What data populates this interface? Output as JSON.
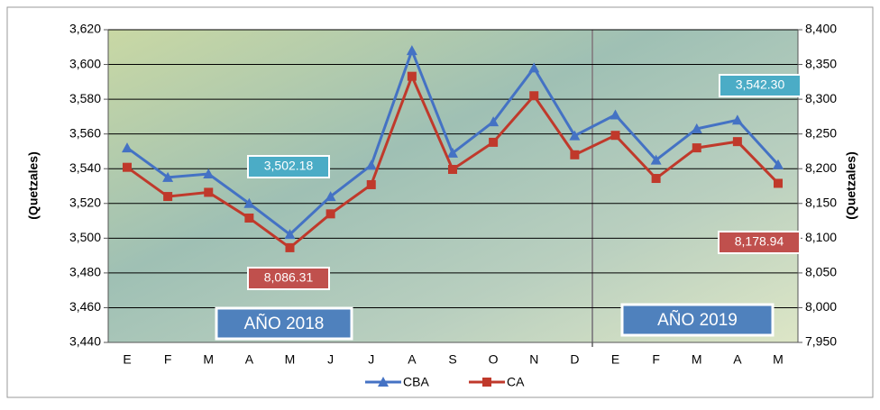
{
  "chart_data": {
    "type": "line",
    "categories": [
      "E",
      "F",
      "M",
      "A",
      "M",
      "J",
      "J",
      "A",
      "S",
      "O",
      "N",
      "D",
      "E",
      "F",
      "M",
      "A",
      "M"
    ],
    "y_label": "(Quetzales)",
    "y2_label": "(Quetzales)",
    "annotations": [
      "AÑO 2018",
      "AÑO 2019"
    ],
    "series": [
      {
        "name": "CBA",
        "color": "#4472c4",
        "marker": "triangle",
        "values": [
          3552,
          3535,
          3537,
          3520,
          3502.18,
          3524,
          3542,
          3608,
          3549,
          3567,
          3598,
          3559,
          3571,
          3545,
          3563,
          3568,
          3542.3
        ],
        "value_labels": [
          null,
          null,
          null,
          null,
          "3,502.18",
          null,
          null,
          null,
          null,
          null,
          null,
          null,
          null,
          null,
          null,
          null,
          "3,542.30"
        ]
      },
      {
        "name": "CA",
        "color": "#c0392b",
        "marker": "square",
        "axis": "y2",
        "values": [
          8202,
          8160,
          8166,
          8129,
          8086.31,
          8135,
          8177,
          8333,
          8199,
          8238,
          8305,
          8220,
          8248,
          8186,
          8230,
          8239,
          8178.94
        ],
        "value_labels": [
          null,
          null,
          null,
          null,
          "8,086.31",
          null,
          null,
          null,
          null,
          null,
          null,
          null,
          null,
          null,
          null,
          null,
          "8,178.94"
        ]
      }
    ],
    "ylim": [
      3440,
      3620
    ],
    "yticks": [
      {
        "value": 3440,
        "label": "3,440"
      },
      {
        "value": 3460,
        "label": "3,460"
      },
      {
        "value": 3480,
        "label": "3,480"
      },
      {
        "value": 3500,
        "label": "3,500"
      },
      {
        "value": 3520,
        "label": "3,520"
      },
      {
        "value": 3540,
        "label": "3,540"
      },
      {
        "value": 3560,
        "label": "3,560"
      },
      {
        "value": 3580,
        "label": "3,580"
      },
      {
        "value": 3600,
        "label": "3,600"
      },
      {
        "value": 3620,
        "label": "3,620"
      }
    ],
    "y2lim": [
      7950,
      8400
    ],
    "y2ticks": [
      {
        "value": 7950,
        "label": "7,950"
      },
      {
        "value": 8000,
        "label": "8,000"
      },
      {
        "value": 8050,
        "label": "8,050"
      },
      {
        "value": 8100,
        "label": "8,100"
      },
      {
        "value": 8150,
        "label": "8,150"
      },
      {
        "value": 8200,
        "label": "8,200"
      },
      {
        "value": 8250,
        "label": "8,250"
      },
      {
        "value": 8300,
        "label": "8,300"
      },
      {
        "value": 8350,
        "label": "8,350"
      },
      {
        "value": 8400,
        "label": "8,400"
      }
    ],
    "grid": true,
    "legend": "bottom"
  }
}
